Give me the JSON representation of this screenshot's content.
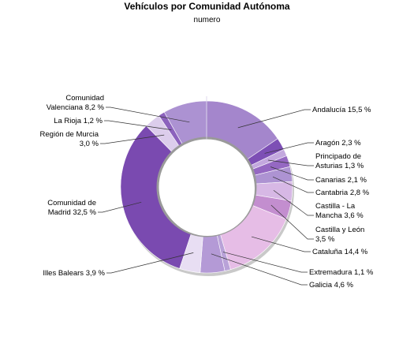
{
  "chart_data": {
    "type": "pie",
    "donut": true,
    "title": "Vehículos por Comunidad Autónoma",
    "subtitle": "numero",
    "legend": "none",
    "slices": [
      {
        "label": "Andalucía",
        "value": 15.5,
        "value_label": "15,5 %",
        "color": "#a486cc"
      },
      {
        "label": "Aragón",
        "value": 2.3,
        "value_label": "2,3 %",
        "color": "#7d4fb5"
      },
      {
        "label": "Principado de Asturias",
        "value": 1.3,
        "value_label": "1,3 %",
        "color": "#c3a8de"
      },
      {
        "label": "Canarias",
        "value": 2.1,
        "value_label": "2,1 %",
        "color": "#9568c2"
      },
      {
        "label": "Cantabria",
        "value": 2.8,
        "value_label": "2,8 %",
        "color": "#ad93d2"
      },
      {
        "label": "Castilla - La Mancha",
        "value": 3.6,
        "value_label": "3,6 %",
        "color": "#d7b8e5"
      },
      {
        "label": "Castilla y León",
        "value": 3.5,
        "value_label": "3,5 %",
        "color": "#c38ecf"
      },
      {
        "label": "Cataluña",
        "value": 14.4,
        "value_label": "14,4 %",
        "color": "#e6bde6"
      },
      {
        "label": "Extremadura",
        "value": 1.1,
        "value_label": "1,1 %",
        "color": "#b9a2d8"
      },
      {
        "label": "Galicia",
        "value": 4.6,
        "value_label": "4,6 %",
        "color": "#b49ad6"
      },
      {
        "label": "Illes Balears",
        "value": 3.9,
        "value_label": "3,9 %",
        "color": "#e8def3"
      },
      {
        "label": "Comunidad de Madrid",
        "value": 32.5,
        "value_label": "32,5 %",
        "color": "#7a4ab0"
      },
      {
        "label": "Región de Murcia",
        "value": 3.0,
        "value_label": "3,0 %",
        "color": "#dccdec"
      },
      {
        "label": "La Rioja",
        "value": 1.2,
        "value_label": "1,2 %",
        "color": "#8c62bd"
      },
      {
        "label": "Comunidad Valenciana",
        "value": 8.2,
        "value_label": "8,2 %",
        "color": "#ac92d2"
      }
    ]
  }
}
